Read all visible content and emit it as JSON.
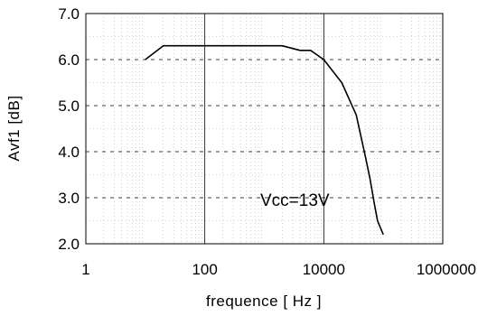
{
  "chart_data": {
    "type": "line",
    "x_scale": "log",
    "xlim": [
      1,
      1000000
    ],
    "ylim": [
      2.0,
      7.0
    ],
    "x_ticks": [
      1,
      100,
      10000,
      1000000
    ],
    "x_tick_labels": [
      "1",
      "100",
      "10000",
      "1000000"
    ],
    "y_ticks": [
      2.0,
      3.0,
      4.0,
      5.0,
      6.0,
      7.0
    ],
    "y_tick_labels": [
      "2.0",
      "3.0",
      "4.0",
      "5.0",
      "6.0",
      "7.0"
    ],
    "xlabel": "frequence [ Hz ]",
    "ylabel": "Avf1 [dB]",
    "annotation": "Vcc=13V",
    "grid": "major solid vertical, dashed horizontal, dotted minor",
    "series": [
      {
        "color": "#000000",
        "x": [
          10,
          20,
          50,
          200,
          1000,
          2000,
          4000,
          6000,
          10000,
          20000,
          35000,
          50000,
          60000,
          70000,
          80000,
          100000
        ],
        "y": [
          6.0,
          6.3,
          6.3,
          6.3,
          6.3,
          6.3,
          6.2,
          6.2,
          6.0,
          5.5,
          4.8,
          3.9,
          3.4,
          2.9,
          2.5,
          2.2
        ]
      }
    ]
  }
}
